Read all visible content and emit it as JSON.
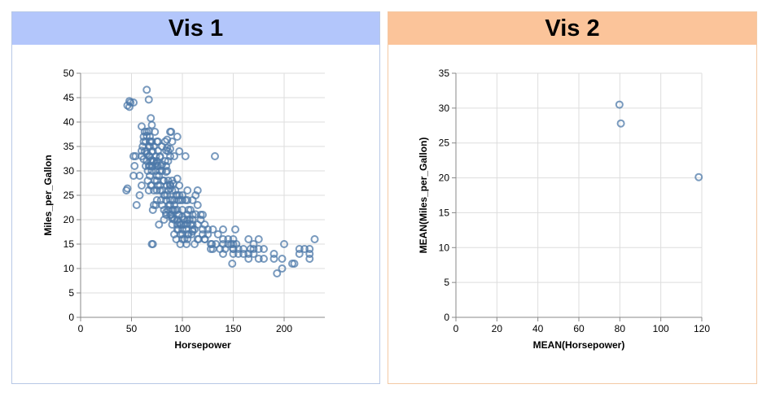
{
  "panels": [
    {
      "title": "Vis 1"
    },
    {
      "title": "Vis 2"
    }
  ],
  "colors": {
    "point": "#4c78a8",
    "grid": "#dddddd",
    "axis": "#888888"
  },
  "chart_data": [
    {
      "type": "scatter",
      "xlabel": "Horsepower",
      "ylabel": "Miles_per_Gallon",
      "xlim": [
        0,
        240
      ],
      "ylim": [
        0,
        50
      ],
      "x_ticks": [
        0,
        50,
        100,
        150,
        200
      ],
      "y_ticks": [
        0,
        5,
        10,
        15,
        20,
        25,
        30,
        35,
        40,
        45,
        50
      ],
      "grid": true,
      "points": [
        [
          45,
          26
        ],
        [
          46,
          26.4
        ],
        [
          48,
          43.1
        ],
        [
          48,
          44.3
        ],
        [
          49,
          44
        ],
        [
          46,
          43.4
        ],
        [
          52,
          44
        ],
        [
          52,
          29
        ],
        [
          53,
          31
        ],
        [
          52,
          33
        ],
        [
          54,
          33
        ],
        [
          55,
          23
        ],
        [
          58,
          29
        ],
        [
          60,
          27
        ],
        [
          58,
          25
        ],
        [
          60,
          39.1
        ],
        [
          62,
          36
        ],
        [
          62,
          32.4
        ],
        [
          63,
          38
        ],
        [
          65,
          46.6
        ],
        [
          65,
          32
        ],
        [
          65,
          33.5
        ],
        [
          65,
          38
        ],
        [
          67,
          44.6
        ],
        [
          67,
          31
        ],
        [
          67,
          26
        ],
        [
          67,
          38.1
        ],
        [
          68,
          29
        ],
        [
          68,
          31
        ],
        [
          68,
          37
        ],
        [
          68,
          35
        ],
        [
          69,
          32
        ],
        [
          70,
          27
        ],
        [
          70,
          32.2
        ],
        [
          70,
          30
        ],
        [
          70,
          39.4
        ],
        [
          70,
          36
        ],
        [
          70,
          31
        ],
        [
          71,
          30.9
        ],
        [
          71,
          32
        ],
        [
          71,
          22
        ],
        [
          72,
          26
        ],
        [
          72,
          23
        ],
        [
          74,
          31.5
        ],
        [
          75,
          29
        ],
        [
          75,
          28
        ],
        [
          75,
          32
        ],
        [
          75,
          26
        ],
        [
          75,
          24
        ],
        [
          76,
          34.1
        ],
        [
          78,
          30
        ],
        [
          78,
          27
        ],
        [
          79,
          24
        ],
        [
          80,
          30
        ],
        [
          80,
          31.3
        ],
        [
          82,
          22
        ],
        [
          83,
          36
        ],
        [
          84,
          29.8
        ],
        [
          84,
          31
        ],
        [
          85,
          27
        ],
        [
          85,
          25
        ],
        [
          85,
          36.4
        ],
        [
          86,
          34
        ],
        [
          86,
          26
        ],
        [
          88,
          27
        ],
        [
          88,
          24
        ],
        [
          88,
          26.4
        ],
        [
          88,
          38
        ],
        [
          88,
          34.5
        ],
        [
          88,
          27.2
        ],
        [
          90,
          28
        ],
        [
          90,
          20.2
        ],
        [
          90,
          24
        ],
        [
          90,
          22
        ],
        [
          91,
          27.4
        ],
        [
          92,
          23
        ],
        [
          92,
          24
        ],
        [
          95,
          19
        ],
        [
          95,
          18
        ],
        [
          95,
          25
        ],
        [
          95,
          28.4
        ],
        [
          95,
          22
        ],
        [
          96,
          24
        ],
        [
          97,
          25
        ],
        [
          97,
          19.4
        ],
        [
          97,
          27
        ],
        [
          98,
          17
        ],
        [
          98,
          19
        ],
        [
          100,
          18
        ],
        [
          100,
          25
        ],
        [
          100,
          16
        ],
        [
          100,
          22
        ],
        [
          100,
          20.6
        ],
        [
          103,
          24
        ],
        [
          105,
          26
        ],
        [
          105,
          19.2
        ],
        [
          105,
          20
        ],
        [
          105,
          17
        ],
        [
          105,
          21
        ],
        [
          108,
          22
        ],
        [
          110,
          18
        ],
        [
          110,
          19
        ],
        [
          110,
          21
        ],
        [
          110,
          17.6
        ],
        [
          112,
          18
        ],
        [
          113,
          21.1
        ],
        [
          115,
          26
        ],
        [
          115,
          23
        ],
        [
          115,
          19
        ],
        [
          116,
          16
        ],
        [
          120,
          18
        ],
        [
          120,
          17
        ],
        [
          122,
          16
        ],
        [
          125,
          17
        ],
        [
          129,
          15
        ],
        [
          130,
          18
        ],
        [
          132,
          33
        ],
        [
          133,
          15
        ],
        [
          135,
          17
        ],
        [
          137,
          14
        ],
        [
          140,
          13
        ],
        [
          140,
          15
        ],
        [
          140,
          18
        ],
        [
          142,
          14
        ],
        [
          145,
          16
        ],
        [
          145,
          15
        ],
        [
          148,
          15
        ],
        [
          149,
          11
        ],
        [
          150,
          14
        ],
        [
          150,
          15
        ],
        [
          150,
          13
        ],
        [
          152,
          18
        ],
        [
          153,
          15
        ],
        [
          155,
          13
        ],
        [
          160,
          13
        ],
        [
          165,
          12
        ],
        [
          167,
          14
        ],
        [
          170,
          13
        ],
        [
          175,
          12
        ],
        [
          175,
          14
        ],
        [
          180,
          14
        ],
        [
          190,
          12
        ],
        [
          190,
          13
        ],
        [
          193,
          9
        ],
        [
          198,
          10
        ],
        [
          200,
          15
        ],
        [
          210,
          11
        ],
        [
          215,
          13
        ],
        [
          220,
          14
        ],
        [
          225,
          14
        ],
        [
          230,
          16
        ],
        [
          225,
          12
        ],
        [
          150,
          14
        ],
        [
          170,
          14
        ],
        [
          175,
          16
        ],
        [
          160,
          14
        ],
        [
          165,
          16
        ],
        [
          180,
          12
        ],
        [
          198,
          12
        ],
        [
          208,
          11
        ],
        [
          215,
          14
        ],
        [
          225,
          13
        ],
        [
          130,
          14
        ],
        [
          140,
          16
        ],
        [
          150,
          16
        ],
        [
          155,
          14
        ],
        [
          165,
          13
        ],
        [
          170,
          15
        ],
        [
          60,
          33
        ],
        [
          61,
          35
        ],
        [
          62,
          37
        ],
        [
          63,
          34
        ],
        [
          64,
          36
        ],
        [
          65,
          34
        ],
        [
          66,
          30
        ],
        [
          67,
          33
        ],
        [
          68,
          33
        ],
        [
          69,
          36
        ],
        [
          70,
          34
        ],
        [
          71,
          34
        ],
        [
          72,
          32
        ],
        [
          73,
          28
        ],
        [
          74,
          30
        ],
        [
          75,
          31
        ],
        [
          76,
          31
        ],
        [
          77,
          29
        ],
        [
          78,
          33
        ],
        [
          79,
          31
        ],
        [
          80,
          26
        ],
        [
          81,
          28
        ],
        [
          82,
          28
        ],
        [
          83,
          25
        ],
        [
          84,
          24
        ],
        [
          85,
          30
        ],
        [
          86,
          28
        ],
        [
          87,
          23
        ],
        [
          88,
          23
        ],
        [
          89,
          21
        ],
        [
          90,
          26
        ],
        [
          91,
          22
        ],
        [
          92,
          20
        ],
        [
          93,
          22
        ],
        [
          94,
          25
        ],
        [
          95,
          20
        ],
        [
          96,
          21
        ],
        [
          97,
          21
        ],
        [
          98,
          24
        ],
        [
          99,
          19
        ],
        [
          100,
          24
        ],
        [
          101,
          19
        ],
        [
          102,
          20
        ],
        [
          103,
          19
        ],
        [
          104,
          18
        ],
        [
          105,
          16
        ],
        [
          106,
          22
        ],
        [
          107,
          20
        ],
        [
          108,
          19
        ],
        [
          109,
          17
        ],
        [
          110,
          20
        ],
        [
          112,
          15
        ],
        [
          115,
          16
        ],
        [
          118,
          20
        ],
        [
          120,
          21
        ],
        [
          122,
          16
        ],
        [
          125,
          18
        ],
        [
          128,
          14
        ],
        [
          64,
          31
        ],
        [
          66,
          28
        ],
        [
          67,
          35
        ],
        [
          69,
          27
        ],
        [
          72,
          35
        ],
        [
          74,
          33
        ],
        [
          76,
          27
        ],
        [
          78,
          26
        ],
        [
          80,
          23
        ],
        [
          82,
          25
        ],
        [
          84,
          21
        ],
        [
          86,
          22
        ],
        [
          88,
          21
        ],
        [
          90,
          19
        ],
        [
          92,
          17
        ],
        [
          94,
          16
        ],
        [
          96,
          18
        ],
        [
          98,
          15
        ],
        [
          100,
          17
        ],
        [
          102,
          16
        ],
        [
          104,
          15
        ],
        [
          106,
          17
        ],
        [
          84,
          34.2
        ],
        [
          83,
          32
        ],
        [
          78,
          32.8
        ],
        [
          86,
          32
        ],
        [
          89,
          38
        ],
        [
          65,
          37.2
        ],
        [
          60,
          34.1
        ],
        [
          69,
          40.8
        ],
        [
          73,
          38
        ],
        [
          92,
          33
        ],
        [
          97,
          34
        ],
        [
          76,
          36
        ],
        [
          90,
          36
        ],
        [
          68,
          36
        ],
        [
          75,
          36
        ],
        [
          80,
          35
        ],
        [
          88,
          33
        ],
        [
          95,
          37
        ],
        [
          103,
          33
        ],
        [
          85,
          34.7
        ],
        [
          71,
          15
        ],
        [
          70,
          15
        ],
        [
          84,
          21.5
        ],
        [
          90,
          20.5
        ],
        [
          74,
          23
        ],
        [
          77,
          19
        ],
        [
          82,
          20
        ],
        [
          93,
          26
        ],
        [
          105,
          24
        ],
        [
          110,
          24
        ],
        [
          113,
          25
        ],
        [
          118,
          21
        ],
        [
          122,
          19
        ],
        [
          128,
          15
        ]
      ]
    },
    {
      "type": "scatter",
      "xlabel": "MEAN(Horsepower)",
      "ylabel": "MEAN(Miles_per_Gallon)",
      "xlim": [
        0,
        120
      ],
      "ylim": [
        0,
        35
      ],
      "x_ticks": [
        0,
        20,
        40,
        60,
        80,
        100,
        120
      ],
      "y_ticks": [
        0,
        5,
        10,
        15,
        20,
        25,
        30,
        35
      ],
      "grid": true,
      "points": [
        [
          79.8,
          30.5
        ],
        [
          80.5,
          27.8
        ],
        [
          118.5,
          20.1
        ]
      ]
    }
  ]
}
